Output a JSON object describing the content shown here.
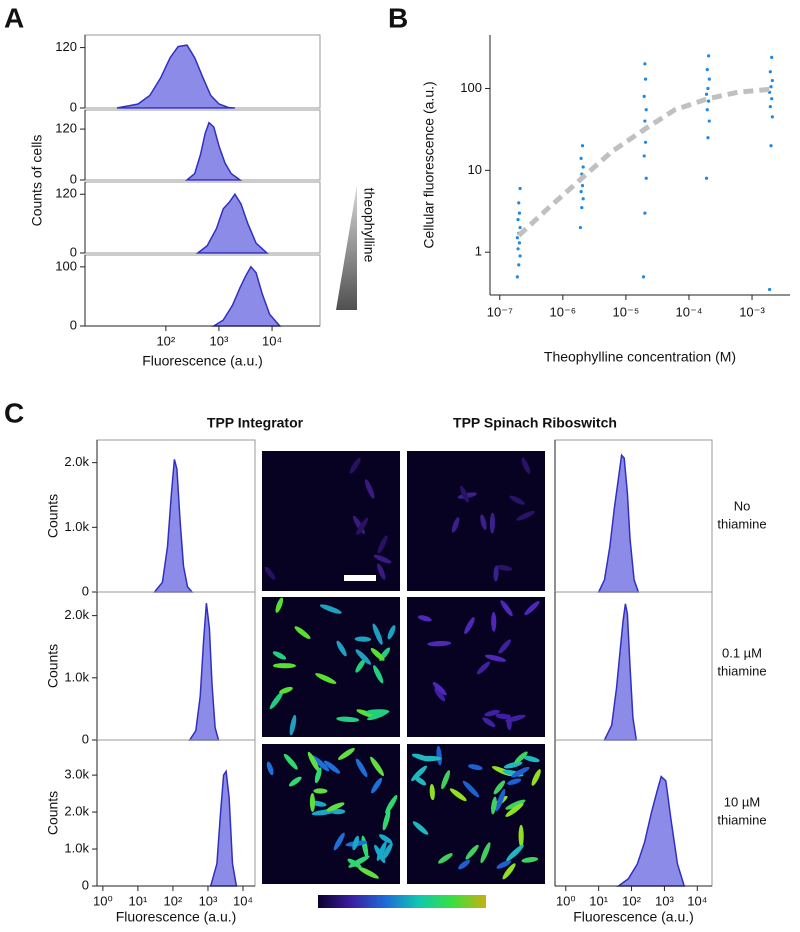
{
  "chart_data": [
    {
      "type": "density",
      "panel_label": "A",
      "ylabel": "Counts of cells",
      "xlabel": "Fluorescence (a.u.)",
      "annotation": "theophylline",
      "log_x": true,
      "xlim": [
        3,
        80000
      ],
      "xticks": [
        {
          "value": 100,
          "label": "10²"
        },
        {
          "value": 1000,
          "label": "10³"
        },
        {
          "value": 10000,
          "label": "10⁴"
        }
      ],
      "color": "#8c8ce8",
      "line_color": "#3030c0",
      "subplots": [
        {
          "x": [
            12,
            15,
            30,
            50,
            80,
            120,
            170,
            250,
            350,
            500,
            700,
            1000,
            1500,
            2000
          ],
          "values": [
            0,
            2,
            8,
            25,
            60,
            100,
            122,
            125,
            100,
            60,
            25,
            8,
            1,
            0
          ],
          "ylim": [
            0,
            145
          ],
          "yticks": [
            0,
            120
          ]
        },
        {
          "x": [
            250,
            350,
            450,
            550,
            650,
            800,
            1000,
            1300,
            1700,
            2500
          ],
          "values": [
            0,
            15,
            60,
            110,
            135,
            125,
            80,
            40,
            15,
            0
          ],
          "ylim": [
            0,
            165
          ],
          "yticks": [
            0,
            120
          ]
        },
        {
          "x": [
            400,
            600,
            900,
            1200,
            1600,
            2000,
            2600,
            3500,
            5000,
            8000
          ],
          "values": [
            0,
            15,
            50,
            90,
            105,
            120,
            100,
            60,
            20,
            0
          ],
          "ylim": [
            0,
            145
          ],
          "yticks": [
            0,
            120
          ]
        },
        {
          "x": [
            800,
            1200,
            1800,
            2500,
            3200,
            4000,
            5000,
            6500,
            9000,
            14000
          ],
          "values": [
            0,
            10,
            35,
            65,
            85,
            100,
            90,
            55,
            20,
            0
          ],
          "ylim": [
            0,
            120
          ],
          "yticks": [
            0,
            100
          ]
        }
      ]
    },
    {
      "type": "scatter",
      "panel_label": "B",
      "ylabel": "Cellular fluorescence (a.u.)",
      "xlabel": "Theophylline concentration (M)",
      "log_x": true,
      "log_y": true,
      "xlim": [
        7e-08,
        0.004
      ],
      "ylim": [
        0.3,
        450
      ],
      "xticks": [
        {
          "value": 1e-07,
          "label": "10⁻⁷"
        },
        {
          "value": 1e-06,
          "label": "10⁻⁶"
        },
        {
          "value": 1e-05,
          "label": "10⁻⁵"
        },
        {
          "value": 0.0001,
          "label": "10⁻⁴"
        },
        {
          "value": 0.001,
          "label": "10⁻³"
        }
      ],
      "yticks": [
        1,
        10,
        100
      ],
      "points": {
        "color": "#1e88e5",
        "x": [
          1.9e-07,
          2e-07,
          2.1e-07,
          1.95e-07,
          2.05e-07,
          1.9e-07,
          2e-07,
          2.1e-07,
          1.95e-07,
          2.05e-07,
          2e-07,
          2.1e-07,
          1.9e-06,
          2e-06,
          2.1e-06,
          1.95e-06,
          2.05e-06,
          1.9e-06,
          2e-06,
          2.1e-06,
          1.95e-06,
          2.05e-06,
          1.9e-05,
          2e-05,
          2.1e-05,
          1.95e-05,
          2.05e-05,
          1.9e-05,
          2e-05,
          2.1e-05,
          1.95e-05,
          2.05e-05,
          2e-05,
          0.00019,
          0.0002,
          0.00021,
          0.000195,
          0.000205,
          0.00019,
          0.0002,
          0.00021,
          0.000195,
          0.000205,
          0.0019,
          0.002,
          0.0021,
          0.00195,
          0.00205,
          0.0019,
          0.002,
          0.0021,
          0.00195,
          0.00205
        ],
        "y": [
          0.5,
          0.7,
          0.9,
          1.1,
          1.3,
          1.5,
          1.7,
          2,
          2.5,
          3,
          4,
          6,
          2,
          3.5,
          4.5,
          5.5,
          6.5,
          7.5,
          9,
          11,
          14,
          20,
          0.5,
          3,
          8,
          15,
          22,
          30,
          40,
          55,
          80,
          130,
          200,
          8,
          25,
          40,
          55,
          70,
          85,
          100,
          130,
          170,
          250,
          0.35,
          20,
          45,
          60,
          75,
          90,
          105,
          125,
          160,
          240
        ]
      },
      "fit": {
        "color": "#c0c0c0",
        "x": [
          2e-07,
          6e-07,
          2e-06,
          6e-06,
          2e-05,
          6e-05,
          0.0002,
          0.0006,
          0.002
        ],
        "y": [
          1.6,
          3.5,
          8,
          17,
          32,
          55,
          75,
          90,
          98
        ]
      }
    },
    {
      "type": "density",
      "ylabel": "Counts",
      "xlabel": "Fluorescence (a.u.)",
      "log_x": true,
      "xlim": [
        0.68,
        22000
      ],
      "xticks": [
        {
          "value": 1,
          "label": "10⁰"
        },
        {
          "value": 10,
          "label": "10¹"
        },
        {
          "value": 100,
          "label": "10²"
        },
        {
          "value": 1000,
          "label": "10³"
        },
        {
          "value": 10000,
          "label": "10⁴"
        }
      ],
      "color": "#8c8ce8",
      "line_color": "#3030c0",
      "subplots": [
        {
          "x": [
            30,
            50,
            70,
            90,
            110,
            130,
            160,
            200,
            260,
            350
          ],
          "values": [
            0,
            150,
            700,
            1500,
            2050,
            1900,
            1100,
            400,
            80,
            0
          ],
          "ylim": [
            0,
            2350
          ],
          "yticks": [
            0,
            {
              "value": 1000,
              "label": "1.0k"
            },
            {
              "value": 2000,
              "label": "2.0k"
            }
          ]
        },
        {
          "x": [
            300,
            450,
            600,
            750,
            900,
            1100,
            1300,
            1600,
            2000
          ],
          "values": [
            0,
            150,
            700,
            1600,
            2200,
            1800,
            900,
            200,
            0
          ],
          "ylim": [
            0,
            2380
          ],
          "yticks": [
            0,
            {
              "value": 1000,
              "label": "1.0k"
            },
            {
              "value": 2000,
              "label": "2.0k"
            }
          ]
        },
        {
          "x": [
            1200,
            1800,
            2300,
            2800,
            3300,
            4000,
            5000,
            6500
          ],
          "values": [
            0,
            600,
            2000,
            3000,
            3100,
            2400,
            600,
            0
          ],
          "ylim": [
            0,
            3950
          ],
          "yticks": [
            0,
            {
              "value": 1000,
              "label": "1.0k"
            },
            {
              "value": 2000,
              "label": "2.0k"
            },
            {
              "value": 3000,
              "label": "3.0k"
            }
          ]
        }
      ]
    },
    {
      "type": "density",
      "xlabel": "Fluorescence (a.u.)",
      "log_x": true,
      "xlim": [
        0.47,
        28000
      ],
      "xticks": [
        {
          "value": 1,
          "label": "10⁰"
        },
        {
          "value": 10,
          "label": "10¹"
        },
        {
          "value": 100,
          "label": "10²"
        },
        {
          "value": 1000,
          "label": "10³"
        },
        {
          "value": 10000,
          "label": "10⁴"
        }
      ],
      "color": "#8c8ce8",
      "line_color": "#3030c0",
      "subplots": [
        {
          "x": [
            10,
            15,
            22,
            30,
            40,
            50,
            60,
            75,
            90,
            120,
            160
          ],
          "values": [
            0,
            8,
            30,
            55,
            75,
            90,
            88,
            65,
            35,
            8,
            0
          ],
          "ylim": [
            0,
            100
          ]
        },
        {
          "x": [
            15,
            25,
            35,
            45,
            55,
            65,
            75,
            90,
            110,
            140
          ],
          "values": [
            0,
            10,
            35,
            60,
            80,
            92,
            85,
            50,
            15,
            0
          ],
          "ylim": [
            0,
            100
          ]
        },
        {
          "x": [
            40,
            80,
            150,
            250,
            400,
            600,
            800,
            1100,
            1600,
            2500,
            4000
          ],
          "values": [
            0,
            5,
            15,
            30,
            50,
            65,
            75,
            72,
            45,
            15,
            0
          ],
          "ylim": [
            0,
            100
          ]
        }
      ]
    }
  ],
  "figure_c": {
    "panel_label": "C",
    "column_titles": [
      "TPP Integrator",
      "TPP Spinach Riboswitch"
    ],
    "row_labels": [
      [
        "No",
        "thiamine"
      ],
      [
        "0.1 µM",
        "thiamine"
      ],
      [
        "10 µM",
        "thiamine"
      ]
    ]
  }
}
